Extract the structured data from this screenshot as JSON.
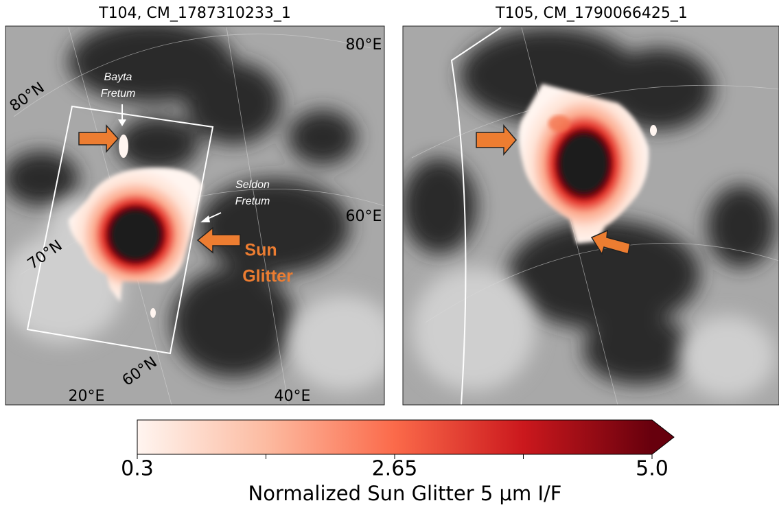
{
  "panels": [
    {
      "title": "T104, CM_1787310233_1",
      "lon_labels": [
        "80°E",
        "60°E",
        "40°E",
        "20°E"
      ],
      "lat_labels": [
        "80°N",
        "70°N",
        "60°N"
      ],
      "features": [
        {
          "lines": [
            "Bayta",
            "Fretum"
          ]
        },
        {
          "lines": [
            "Seldon",
            "Fretum"
          ]
        }
      ],
      "callout": {
        "lines": [
          "Sun",
          "Glitter"
        ]
      }
    },
    {
      "title": "T105, CM_1790066425_1"
    }
  ],
  "colorbar": {
    "label": "Normalized Sun Glitter 5 μm I/F",
    "range": [
      0.3,
      5
    ],
    "ticks": [
      0.3,
      2.65,
      {
        "value": 5,
        "label": "5.0"
      }
    ],
    "minor_ticks": [
      1.475,
      3.825
    ]
  }
}
